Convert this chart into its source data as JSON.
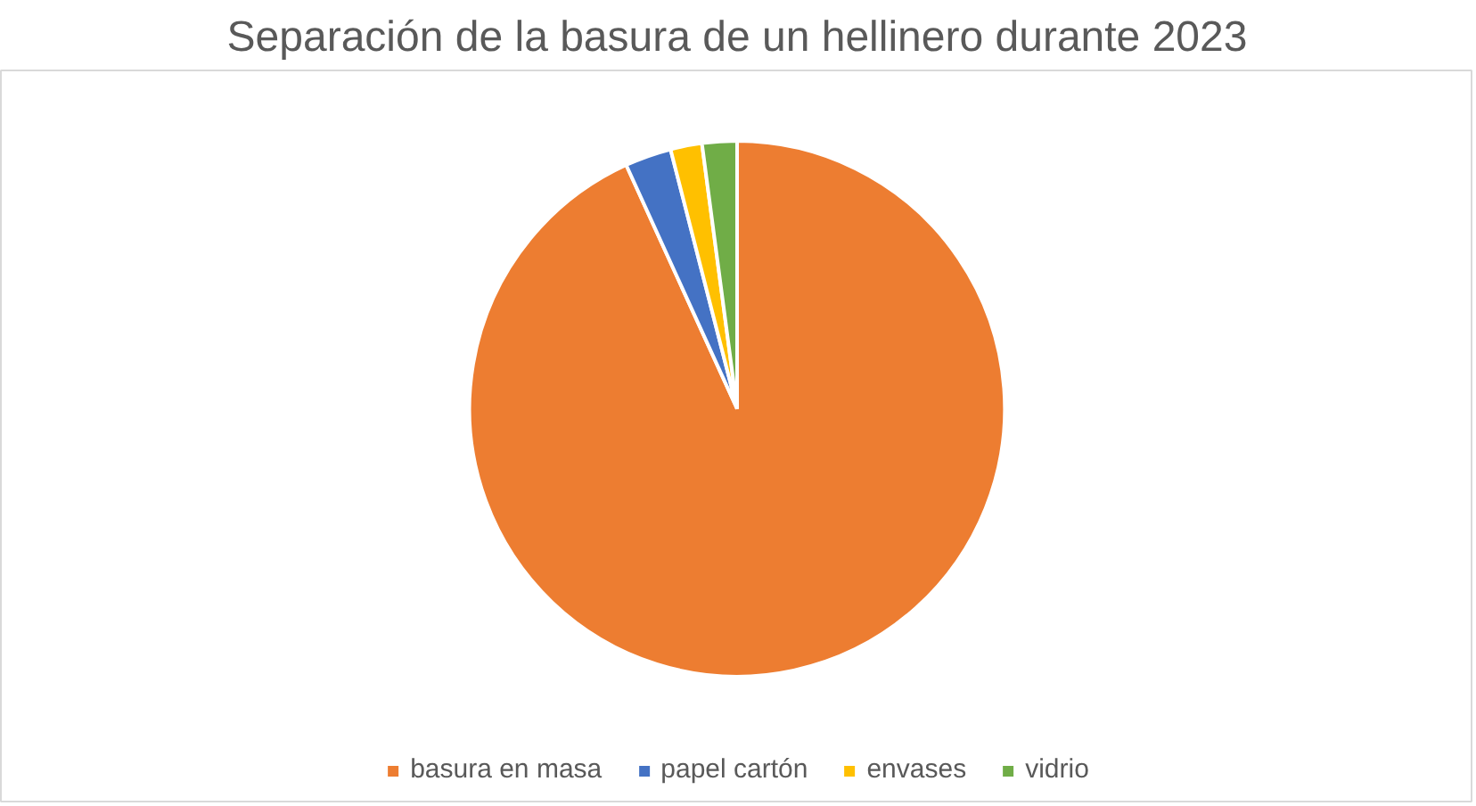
{
  "chart_data": {
    "type": "pie",
    "title": "Separación de la basura de un hellinero durante 2023",
    "categories": [
      "basura en masa",
      "papel cartón",
      "envases",
      "vidrio"
    ],
    "values": [
      93.2,
      2.8,
      1.9,
      2.1
    ],
    "colors": [
      "#ed7d31",
      "#4472c4",
      "#ffc000",
      "#70ad47"
    ],
    "legend": "bottom"
  }
}
